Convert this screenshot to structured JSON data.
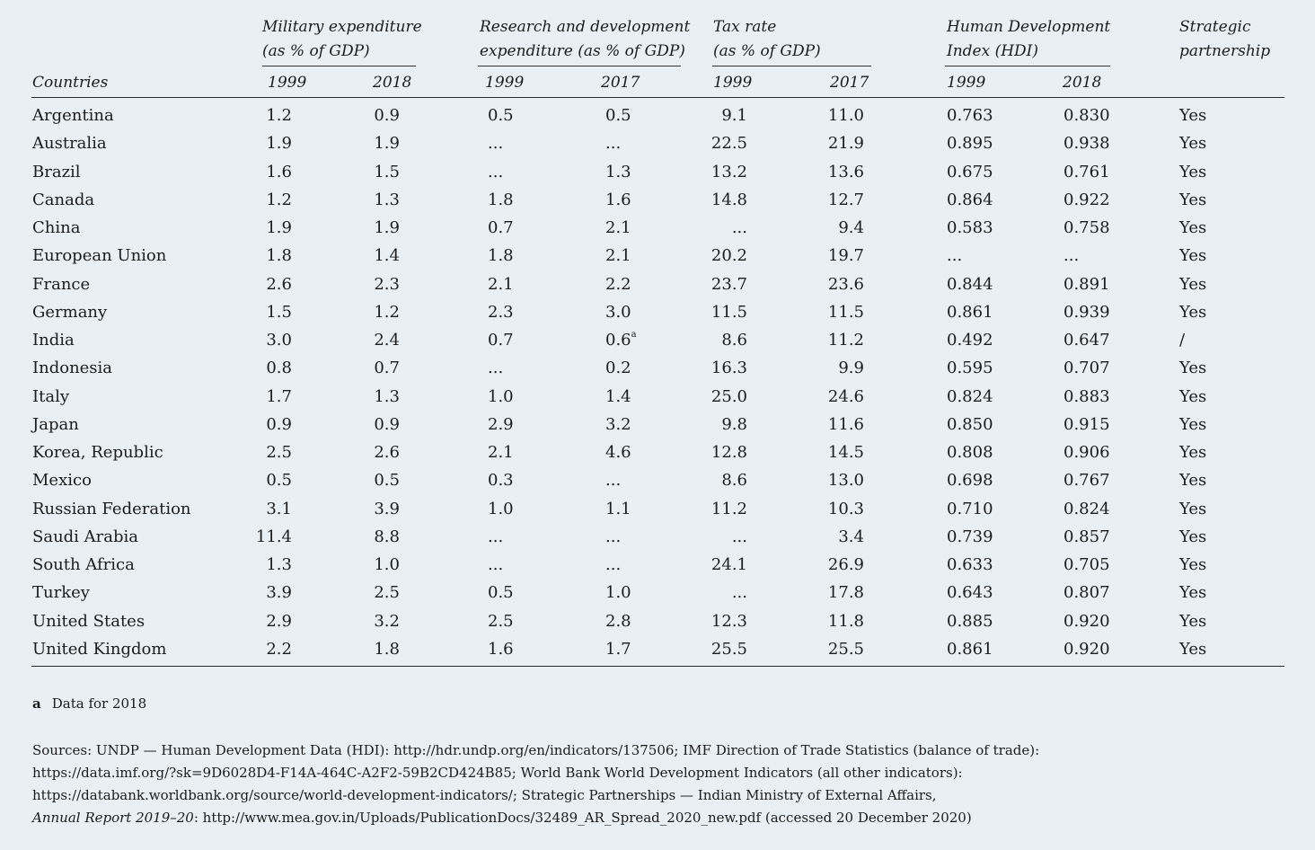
{
  "headers": {
    "countries": "Countries",
    "military": [
      "Military expenditure",
      "(as % of GDP)"
    ],
    "rnd": [
      "Research and development",
      "expenditure (as % of GDP)"
    ],
    "tax": [
      "Tax rate",
      "(as % of GDP)"
    ],
    "hdi": [
      "Human Development",
      "Index (HDI)"
    ],
    "strategic": [
      "Strategic",
      "partnership"
    ],
    "years": {
      "mil_a": "1999",
      "mil_b": "2018",
      "rnd_a": "1999",
      "rnd_b": "2017",
      "tax_a": "1999",
      "tax_b": "2017",
      "hdi_a": "1999",
      "hdi_b": "2018"
    }
  },
  "rows": [
    [
      "Argentina",
      "1.2",
      "0.9",
      "0.5",
      "0.5",
      "9.1",
      "11.0",
      "0.763",
      "0.830",
      "Yes"
    ],
    [
      "Australia",
      "1.9",
      "1.9",
      "...",
      "...",
      "22.5",
      "21.9",
      "0.895",
      "0.938",
      "Yes"
    ],
    [
      "Brazil",
      "1.6",
      "1.5",
      "...",
      "1.3",
      "13.2",
      "13.6",
      "0.675",
      "0.761",
      "Yes"
    ],
    [
      "Canada",
      "1.2",
      "1.3",
      "1.8",
      "1.6",
      "14.8",
      "12.7",
      "0.864",
      "0.922",
      "Yes"
    ],
    [
      "China",
      "1.9",
      "1.9",
      "0.7",
      "2.1",
      "...",
      "9.4",
      "0.583",
      "0.758",
      "Yes"
    ],
    [
      "European Union",
      "1.8",
      "1.4",
      "1.8",
      "2.1",
      "20.2",
      "19.7",
      "...",
      "...",
      "Yes"
    ],
    [
      "France",
      "2.6",
      "2.3",
      "2.1",
      "2.2",
      "23.7",
      "23.6",
      "0.844",
      "0.891",
      "Yes"
    ],
    [
      "Germany",
      "1.5",
      "1.2",
      "2.3",
      "3.0",
      "11.5",
      "11.5",
      "0.861",
      "0.939",
      "Yes"
    ],
    [
      "India",
      "3.0",
      "2.4",
      "0.7",
      "0.6",
      "8.6",
      "11.2",
      "0.492",
      "0.647",
      "/"
    ],
    [
      "Indonesia",
      "0.8",
      "0.7",
      "...",
      "0.2",
      "16.3",
      "9.9",
      "0.595",
      "0.707",
      "Yes"
    ],
    [
      "Italy",
      "1.7",
      "1.3",
      "1.0",
      "1.4",
      "25.0",
      "24.6",
      "0.824",
      "0.883",
      "Yes"
    ],
    [
      "Japan",
      "0.9",
      "0.9",
      "2.9",
      "3.2",
      "9.8",
      "11.6",
      "0.850",
      "0.915",
      "Yes"
    ],
    [
      "Korea, Republic",
      "2.5",
      "2.6",
      "2.1",
      "4.6",
      "12.8",
      "14.5",
      "0.808",
      "0.906",
      "Yes"
    ],
    [
      "Mexico",
      "0.5",
      "0.5",
      "0.3",
      "...",
      "8.6",
      "13.0",
      "0.698",
      "0.767",
      "Yes"
    ],
    [
      "Russian Federation",
      "3.1",
      "3.9",
      "1.0",
      "1.1",
      "11.2",
      "10.3",
      "0.710",
      "0.824",
      "Yes"
    ],
    [
      "Saudi Arabia",
      "11.4",
      "8.8",
      "...",
      "...",
      "...",
      "3.4",
      "0.739",
      "0.857",
      "Yes"
    ],
    [
      "South Africa",
      "1.3",
      "1.0",
      "...",
      "...",
      "24.1",
      "26.9",
      "0.633",
      "0.705",
      "Yes"
    ],
    [
      "Turkey",
      "3.9",
      "2.5",
      "0.5",
      "1.0",
      "...",
      "17.8",
      "0.643",
      "0.807",
      "Yes"
    ],
    [
      "United States",
      "2.9",
      "3.2",
      "2.5",
      "2.8",
      "12.3",
      "11.8",
      "0.885",
      "0.920",
      "Yes"
    ],
    [
      "United Kingdom",
      "2.2",
      "1.8",
      "1.6",
      "1.7",
      "25.5",
      "25.5",
      "0.861",
      "0.920",
      "Yes"
    ]
  ],
  "superscript_note_marker": "a",
  "footnote": {
    "key": "a",
    "text": "Data for 2018"
  },
  "sources": {
    "line1": "Sources: UNDP — Human Development Data (HDI): http://hdr.undp.org/en/indicators/137506; IMF Direction of Trade Statistics (balance of trade):",
    "line2": "https://data.imf.org/?sk=9D6028D4-F14A-464C-A2F2-59B2CD424B85; World Bank World Development Indicators (all other indicators):",
    "line3": "https://databank.worldbank.org/source/world-development-indicators/; Strategic Partnerships — Indian Ministry of External Affairs,",
    "line4_italic": "Annual Report 2019–20",
    "line4_rest": ": http://www.mea.gov.in/Uploads/PublicationDocs/32489_AR_Spread_2020_new.pdf (accessed 20 December 2020)"
  }
}
